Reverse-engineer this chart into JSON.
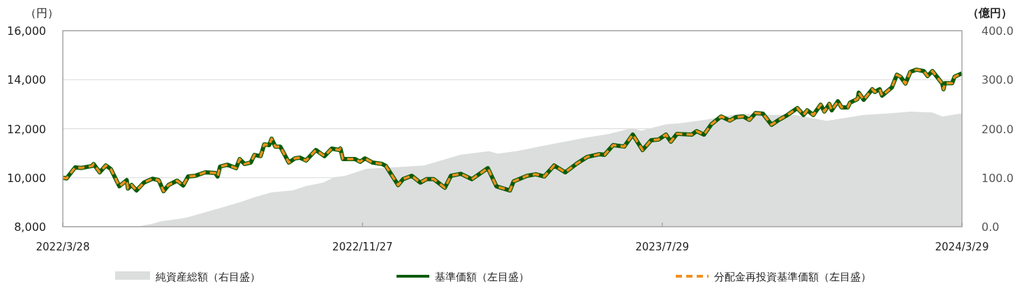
{
  "chart_data": {
    "type": "line",
    "ylabel": "（円）",
    "y2label": "（億円）",
    "xlim": [
      "2022-03-28",
      "2024-03-29"
    ],
    "xticks": [
      {
        "value": "2022-03-28",
        "label": "2022/3/28"
      },
      {
        "value": "2022-11-27",
        "label": "2022/11/27"
      },
      {
        "value": "2023-07-29",
        "label": "2023/7/29"
      },
      {
        "value": "2024-03-29",
        "label": "2024/3/29"
      }
    ],
    "ylim": [
      8000,
      16000
    ],
    "yticks": [
      {
        "value": 8000,
        "label": "8,000"
      },
      {
        "value": 10000,
        "label": "10,000"
      },
      {
        "value": 12000,
        "label": "12,000"
      },
      {
        "value": 14000,
        "label": "14,000"
      },
      {
        "value": 16000,
        "label": "16,000"
      }
    ],
    "y2lim": [
      0,
      400
    ],
    "y2ticks": [
      {
        "value": 0,
        "label": "0.0"
      },
      {
        "value": 100,
        "label": "100.0"
      },
      {
        "value": 200,
        "label": "200.0"
      },
      {
        "value": 300,
        "label": "300.0"
      },
      {
        "value": 400,
        "label": "400.0"
      }
    ],
    "grid": "y",
    "legend": "bottom",
    "series": [
      {
        "name": "純資産総額（右目盛）",
        "type": "area",
        "axis": "y2",
        "color": "#dcdddd",
        "x": [
          "2022-03-28",
          "2022-05-27",
          "2022-06-09",
          "2022-06-16",
          "2022-07-06",
          "2022-07-20",
          "2022-08-03",
          "2022-08-19",
          "2022-09-01",
          "2022-09-14",
          "2022-10-01",
          "2022-10-12",
          "2022-10-26",
          "2022-11-04",
          "2022-11-13",
          "2022-11-30",
          "2022-12-28",
          "2023-01-16",
          "2023-02-15",
          "2023-03-10",
          "2023-03-17",
          "2023-04-01",
          "2023-04-29",
          "2023-05-28",
          "2023-06-15",
          "2023-07-04",
          "2023-07-12",
          "2023-08-01",
          "2023-08-12",
          "2023-09-04",
          "2023-09-30",
          "2023-10-21",
          "2023-11-14",
          "2023-12-10",
          "2024-01-09",
          "2024-01-28",
          "2024-02-16",
          "2024-03-05",
          "2024-03-13",
          "2024-03-28",
          "2024-03-29"
        ],
        "values": [
          0,
          0,
          6,
          11,
          18,
          28,
          38,
          50,
          61,
          70,
          74,
          83,
          90,
          101,
          104,
          118,
          122,
          125,
          147,
          154,
          149,
          154,
          168,
          182,
          189,
          201,
          196,
          209,
          211,
          219,
          231,
          228,
          228,
          216,
          228,
          231,
          235,
          233,
          225,
          231,
          231
        ]
      },
      {
        "name": "基準価額（左目盛）",
        "line_style": "solid",
        "color": "#0a5c0a",
        "x": [
          "2022-03-28",
          "2022-03-31",
          "2022-04-07",
          "2022-04-12",
          "2022-04-21",
          "2022-04-22",
          "2022-04-27",
          "2022-05-02",
          "2022-05-06",
          "2022-05-13",
          "2022-05-19",
          "2022-05-20",
          "2022-05-23",
          "2022-05-27",
          "2022-06-02",
          "2022-06-09",
          "2022-06-14",
          "2022-06-18",
          "2022-06-22",
          "2022-06-29",
          "2022-07-04",
          "2022-07-08",
          "2022-07-14",
          "2022-07-22",
          "2022-07-30",
          "2022-08-01",
          "2022-08-03",
          "2022-08-09",
          "2022-08-16",
          "2022-08-19",
          "2022-08-23",
          "2022-08-28",
          "2022-08-31",
          "2022-09-05",
          "2022-09-08",
          "2022-09-12",
          "2022-09-14",
          "2022-09-17",
          "2022-09-21",
          "2022-09-28",
          "2022-10-03",
          "2022-10-07",
          "2022-10-12",
          "2022-10-20",
          "2022-10-27",
          "2022-11-02",
          "2022-11-08",
          "2022-11-09",
          "2022-11-11",
          "2022-11-21",
          "2022-11-25",
          "2022-11-29",
          "2022-12-05",
          "2022-12-13",
          "2022-12-16",
          "2022-12-26",
          "2022-12-30",
          "2023-01-06",
          "2023-01-13",
          "2023-01-18",
          "2023-01-24",
          "2023-02-02",
          "2023-02-07",
          "2023-02-15",
          "2023-02-24",
          "2023-03-09",
          "2023-03-16",
          "2023-03-27",
          "2023-03-30",
          "2023-04-10",
          "2023-04-17",
          "2023-04-24",
          "2023-05-02",
          "2023-05-11",
          "2023-05-20",
          "2023-05-29",
          "2023-06-08",
          "2023-06-12",
          "2023-06-19",
          "2023-06-28",
          "2023-07-05",
          "2023-07-13",
          "2023-07-20",
          "2023-07-26",
          "2023-08-01",
          "2023-08-05",
          "2023-08-10",
          "2023-08-22",
          "2023-08-26",
          "2023-09-01",
          "2023-09-07",
          "2023-09-15",
          "2023-09-22",
          "2023-09-27",
          "2023-10-03",
          "2023-10-08",
          "2023-10-13",
          "2023-10-19",
          "2023-10-26",
          "2023-11-01",
          "2023-11-08",
          "2023-11-16",
          "2023-11-21",
          "2023-11-24",
          "2023-11-29",
          "2023-12-05",
          "2023-12-08",
          "2023-12-12",
          "2023-12-14",
          "2023-12-19",
          "2023-12-22",
          "2023-12-27",
          "2023-12-29",
          "2024-01-04",
          "2024-01-05",
          "2024-01-09",
          "2024-01-16",
          "2024-01-18",
          "2024-01-22",
          "2024-01-24",
          "2024-02-01",
          "2024-02-05",
          "2024-02-08",
          "2024-02-12",
          "2024-02-16",
          "2024-02-21",
          "2024-02-27",
          "2024-03-01",
          "2024-03-05",
          "2024-03-13",
          "2024-03-14",
          "2024-03-15",
          "2024-03-21",
          "2024-03-23",
          "2024-03-29"
        ],
        "values": [
          10000,
          9970,
          10420,
          10400,
          10480,
          10560,
          10220,
          10500,
          10360,
          9650,
          9900,
          9560,
          9700,
          9480,
          9800,
          9960,
          9900,
          9450,
          9700,
          9880,
          9680,
          10050,
          10080,
          10220,
          10190,
          10050,
          10450,
          10530,
          10390,
          10760,
          10560,
          10620,
          10930,
          10880,
          11360,
          11330,
          11590,
          11270,
          11270,
          10620,
          10790,
          10820,
          10700,
          11130,
          10880,
          11190,
          11130,
          11190,
          10760,
          10760,
          10650,
          10790,
          10620,
          10560,
          10480,
          9700,
          9940,
          10080,
          9800,
          9940,
          9940,
          9590,
          10080,
          10160,
          9940,
          10390,
          9650,
          9480,
          9850,
          10080,
          10140,
          10050,
          10500,
          10220,
          10560,
          10850,
          10960,
          10930,
          11330,
          11270,
          11760,
          11130,
          11530,
          11560,
          11760,
          11470,
          11790,
          11760,
          11900,
          11760,
          12180,
          12500,
          12330,
          12470,
          12500,
          12360,
          12640,
          12610,
          12160,
          12360,
          12560,
          12840,
          12560,
          12750,
          12560,
          12980,
          12700,
          13010,
          12750,
          13120,
          12870,
          12870,
          13070,
          13210,
          13470,
          13180,
          13610,
          13500,
          13610,
          13350,
          13690,
          14200,
          14120,
          13840,
          14320,
          14410,
          14350,
          14150,
          14350,
          13840,
          13610,
          13860,
          13860,
          14120,
          14260
        ]
      },
      {
        "name": "分配金再投資基準価額（左目盛）",
        "line_style": "dashed",
        "color": "#f0901e",
        "x": [
          "2022-03-28",
          "2022-03-31",
          "2022-04-07",
          "2022-04-12",
          "2022-04-21",
          "2022-04-22",
          "2022-04-27",
          "2022-05-02",
          "2022-05-06",
          "2022-05-13",
          "2022-05-19",
          "2022-05-20",
          "2022-05-23",
          "2022-05-27",
          "2022-06-02",
          "2022-06-09",
          "2022-06-14",
          "2022-06-18",
          "2022-06-22",
          "2022-06-29",
          "2022-07-04",
          "2022-07-08",
          "2022-07-14",
          "2022-07-22",
          "2022-07-30",
          "2022-08-01",
          "2022-08-03",
          "2022-08-09",
          "2022-08-16",
          "2022-08-19",
          "2022-08-23",
          "2022-08-28",
          "2022-08-31",
          "2022-09-05",
          "2022-09-08",
          "2022-09-12",
          "2022-09-14",
          "2022-09-17",
          "2022-09-21",
          "2022-09-28",
          "2022-10-03",
          "2022-10-07",
          "2022-10-12",
          "2022-10-20",
          "2022-10-27",
          "2022-11-02",
          "2022-11-08",
          "2022-11-09",
          "2022-11-11",
          "2022-11-21",
          "2022-11-25",
          "2022-11-29",
          "2022-12-05",
          "2022-12-13",
          "2022-12-16",
          "2022-12-26",
          "2022-12-30",
          "2023-01-06",
          "2023-01-13",
          "2023-01-18",
          "2023-01-24",
          "2023-02-02",
          "2023-02-07",
          "2023-02-15",
          "2023-02-24",
          "2023-03-09",
          "2023-03-16",
          "2023-03-27",
          "2023-03-30",
          "2023-04-10",
          "2023-04-17",
          "2023-04-24",
          "2023-05-02",
          "2023-05-11",
          "2023-05-20",
          "2023-05-29",
          "2023-06-08",
          "2023-06-12",
          "2023-06-19",
          "2023-06-28",
          "2023-07-05",
          "2023-07-13",
          "2023-07-20",
          "2023-07-26",
          "2023-08-01",
          "2023-08-05",
          "2023-08-10",
          "2023-08-22",
          "2023-08-26",
          "2023-09-01",
          "2023-09-07",
          "2023-09-15",
          "2023-09-22",
          "2023-09-27",
          "2023-10-03",
          "2023-10-08",
          "2023-10-13",
          "2023-10-19",
          "2023-10-26",
          "2023-11-01",
          "2023-11-08",
          "2023-11-16",
          "2023-11-21",
          "2023-11-24",
          "2023-11-29",
          "2023-12-05",
          "2023-12-08",
          "2023-12-12",
          "2023-12-14",
          "2023-12-19",
          "2023-12-22",
          "2023-12-27",
          "2023-12-29",
          "2024-01-04",
          "2024-01-05",
          "2024-01-09",
          "2024-01-16",
          "2024-01-18",
          "2024-01-22",
          "2024-01-24",
          "2024-02-01",
          "2024-02-05",
          "2024-02-08",
          "2024-02-12",
          "2024-02-16",
          "2024-02-21",
          "2024-02-27",
          "2024-03-01",
          "2024-03-05",
          "2024-03-13",
          "2024-03-14",
          "2024-03-15",
          "2024-03-21",
          "2024-03-23",
          "2024-03-29"
        ],
        "values": [
          10000,
          9970,
          10420,
          10400,
          10480,
          10560,
          10220,
          10500,
          10360,
          9650,
          9900,
          9560,
          9700,
          9480,
          9800,
          9960,
          9900,
          9450,
          9700,
          9880,
          9680,
          10050,
          10080,
          10220,
          10190,
          10050,
          10450,
          10530,
          10390,
          10760,
          10560,
          10620,
          10930,
          10880,
          11360,
          11330,
          11590,
          11270,
          11270,
          10620,
          10790,
          10820,
          10700,
          11130,
          10880,
          11190,
          11130,
          11190,
          10760,
          10760,
          10650,
          10790,
          10620,
          10560,
          10480,
          9700,
          9940,
          10080,
          9800,
          9940,
          9940,
          9590,
          10080,
          10160,
          9940,
          10390,
          9650,
          9480,
          9850,
          10080,
          10140,
          10050,
          10500,
          10220,
          10560,
          10850,
          10960,
          10930,
          11330,
          11270,
          11760,
          11130,
          11530,
          11560,
          11760,
          11470,
          11790,
          11760,
          11900,
          11760,
          12180,
          12500,
          12330,
          12470,
          12500,
          12360,
          12640,
          12610,
          12160,
          12360,
          12560,
          12840,
          12560,
          12750,
          12560,
          12980,
          12700,
          13010,
          12750,
          13120,
          12870,
          12870,
          13070,
          13210,
          13470,
          13180,
          13610,
          13500,
          13610,
          13350,
          13690,
          14200,
          14120,
          13840,
          14320,
          14410,
          14350,
          14150,
          14350,
          13840,
          13610,
          13860,
          13860,
          14120,
          14260
        ]
      }
    ]
  }
}
